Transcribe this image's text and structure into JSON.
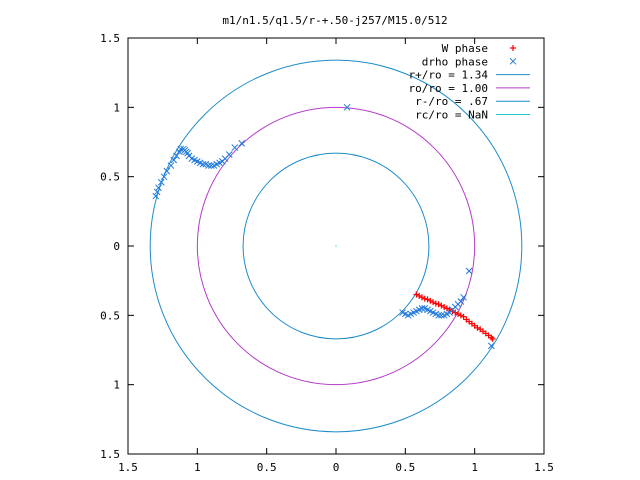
{
  "chart_data": {
    "type": "scatter",
    "title": "m1/n1.5/q1.5/r-+.50-j257/M15.0/512",
    "xlabel": "",
    "ylabel": "",
    "xlim": [
      -1.5,
      1.5
    ],
    "ylim": [
      -1.5,
      1.5
    ],
    "x_tick_values": [
      -1.5,
      -1,
      -0.5,
      0,
      0.5,
      1,
      1.5
    ],
    "x_tick_labels": [
      "1.5",
      "1",
      "0.5",
      "0",
      "0.5",
      "1",
      "1.5"
    ],
    "y_tick_values": [
      1.5,
      1,
      0.5,
      0,
      -0.5,
      -1,
      -1.5
    ],
    "y_tick_labels": [
      "1.5",
      "1",
      "0.5",
      "0",
      "0.5",
      "1",
      "1.5"
    ],
    "grid": false,
    "legend_position": "top-right",
    "series": [
      {
        "name": "W phase",
        "marker": "plus",
        "color": "#ff0000",
        "points": [
          [
            0.58,
            -0.35
          ],
          [
            0.6,
            -0.36
          ],
          [
            0.62,
            -0.37
          ],
          [
            0.64,
            -0.38
          ],
          [
            0.66,
            -0.385
          ],
          [
            0.68,
            -0.395
          ],
          [
            0.7,
            -0.405
          ],
          [
            0.72,
            -0.415
          ],
          [
            0.74,
            -0.42
          ],
          [
            0.76,
            -0.43
          ],
          [
            0.78,
            -0.44
          ],
          [
            0.8,
            -0.45
          ],
          [
            0.82,
            -0.46
          ],
          [
            0.84,
            -0.47
          ],
          [
            0.86,
            -0.48
          ],
          [
            0.88,
            -0.49
          ],
          [
            0.9,
            -0.5
          ],
          [
            0.92,
            -0.51
          ],
          [
            0.94,
            -0.53
          ],
          [
            0.96,
            -0.545
          ],
          [
            0.98,
            -0.56
          ],
          [
            1.0,
            -0.575
          ],
          [
            1.02,
            -0.59
          ],
          [
            1.04,
            -0.6
          ],
          [
            1.06,
            -0.615
          ],
          [
            1.08,
            -0.63
          ],
          [
            1.1,
            -0.645
          ],
          [
            1.12,
            -0.66
          ],
          [
            1.13,
            -0.67
          ]
        ]
      },
      {
        "name": "drho phase",
        "marker": "cross",
        "color": "#1e78dc",
        "points": [
          [
            -1.3,
            0.36
          ],
          [
            -1.29,
            0.39
          ],
          [
            -1.28,
            0.42
          ],
          [
            -1.26,
            0.46
          ],
          [
            -1.24,
            0.5
          ],
          [
            -1.22,
            0.54
          ],
          [
            -1.19,
            0.58
          ],
          [
            -1.17,
            0.62
          ],
          [
            -1.15,
            0.65
          ],
          [
            -1.13,
            0.68
          ],
          [
            -1.12,
            0.7
          ],
          [
            -1.1,
            0.7
          ],
          [
            -1.09,
            0.69
          ],
          [
            -1.08,
            0.68
          ],
          [
            -1.07,
            0.67
          ],
          [
            -1.06,
            0.65
          ],
          [
            -1.04,
            0.63
          ],
          [
            -1.02,
            0.62
          ],
          [
            -1.0,
            0.61
          ],
          [
            -0.98,
            0.6
          ],
          [
            -0.96,
            0.59
          ],
          [
            -0.94,
            0.59
          ],
          [
            -0.92,
            0.58
          ],
          [
            -0.9,
            0.58
          ],
          [
            -0.88,
            0.58
          ],
          [
            -0.86,
            0.59
          ],
          [
            -0.84,
            0.6
          ],
          [
            -0.82,
            0.61
          ],
          [
            -0.8,
            0.63
          ],
          [
            -0.77,
            0.66
          ],
          [
            -0.73,
            0.71
          ],
          [
            -0.68,
            0.74
          ],
          [
            0.08,
            1.0
          ],
          [
            0.48,
            -0.48
          ],
          [
            0.5,
            -0.49
          ],
          [
            0.52,
            -0.5
          ],
          [
            0.54,
            -0.49
          ],
          [
            0.56,
            -0.48
          ],
          [
            0.58,
            -0.47
          ],
          [
            0.6,
            -0.46
          ],
          [
            0.62,
            -0.45
          ],
          [
            0.64,
            -0.45
          ],
          [
            0.66,
            -0.46
          ],
          [
            0.68,
            -0.47
          ],
          [
            0.7,
            -0.48
          ],
          [
            0.72,
            -0.49
          ],
          [
            0.74,
            -0.5
          ],
          [
            0.76,
            -0.5
          ],
          [
            0.78,
            -0.5
          ],
          [
            0.8,
            -0.49
          ],
          [
            0.82,
            -0.48
          ],
          [
            0.84,
            -0.46
          ],
          [
            0.86,
            -0.44
          ],
          [
            0.88,
            -0.42
          ],
          [
            0.9,
            -0.4
          ],
          [
            0.92,
            -0.37
          ],
          [
            0.96,
            -0.18
          ],
          [
            1.12,
            -0.72
          ]
        ]
      }
    ],
    "circles": [
      {
        "name": "r+/ro = 1.34",
        "radius": 1.34,
        "color": "#1e8cc8"
      },
      {
        "name": "ro/ro = 1.00",
        "radius": 1.0,
        "color": "#b43cc8"
      },
      {
        "name": "r-/ro = .67",
        "radius": 0.67,
        "color": "#1e8cc8"
      },
      {
        "name": "rc/ro = NaN",
        "radius": null,
        "color": "#1ec8c8"
      }
    ]
  }
}
